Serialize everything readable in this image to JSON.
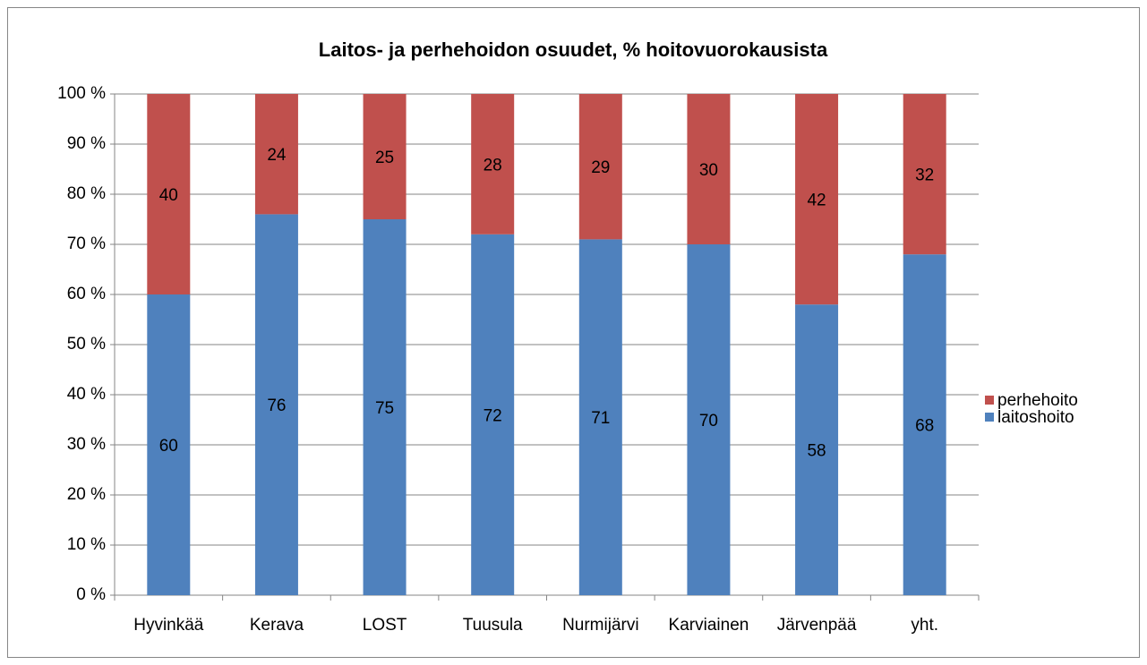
{
  "chart_data": {
    "type": "stacked_bar",
    "title": "Laitos- ja perhehoidon osuudet, % hoitovuorokausista",
    "categories": [
      "Hyvinkää",
      "Kerava",
      "LOST",
      "Tuusula",
      "Nurmijärvi",
      "Karviainen",
      "Järvenpää",
      "yht."
    ],
    "series": [
      {
        "name": "laitoshoito",
        "color": "#4f81bd",
        "values": [
          60,
          76,
          75,
          72,
          71,
          70,
          58,
          68
        ]
      },
      {
        "name": "perhehoito",
        "color": "#c0504d",
        "values": [
          40,
          24,
          25,
          28,
          29,
          30,
          42,
          32
        ]
      }
    ],
    "ylim": [
      0,
      100
    ],
    "yticks": [
      {
        "value": 0,
        "label": "0 %"
      },
      {
        "value": 10,
        "label": "10 %"
      },
      {
        "value": 20,
        "label": "20 %"
      },
      {
        "value": 30,
        "label": "30 %"
      },
      {
        "value": 40,
        "label": "40 %"
      },
      {
        "value": 50,
        "label": "50 %"
      },
      {
        "value": 60,
        "label": "60 %"
      },
      {
        "value": 70,
        "label": "70 %"
      },
      {
        "value": 80,
        "label": "80 %"
      },
      {
        "value": 90,
        "label": "90 %"
      },
      {
        "value": 100,
        "label": "100 %"
      }
    ],
    "grid": true,
    "legend": "right",
    "data_labels": true
  }
}
